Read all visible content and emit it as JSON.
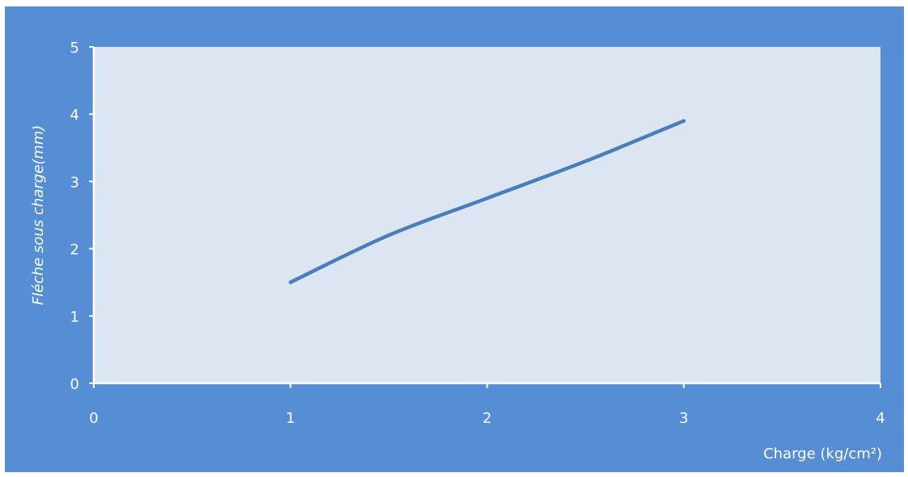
{
  "chart_data": {
    "type": "line",
    "xlabel": "Charge (kg/cm²)",
    "ylabel": "Fléche sous charge(mm)",
    "xlim": [
      0,
      4
    ],
    "ylim": [
      0,
      5
    ],
    "x_ticks": [
      "0",
      "1",
      "2",
      "3",
      "4"
    ],
    "y_ticks": [
      "0",
      "1",
      "2",
      "3",
      "4",
      "5"
    ],
    "grid": false,
    "legend": false,
    "series": [
      {
        "x": [
          1,
          1.5,
          2,
          2.5,
          3
        ],
        "values": [
          1.5,
          2.2,
          2.75,
          3.3,
          3.9
        ]
      }
    ],
    "colors": {
      "background": "#558ed5",
      "plot_area": "#dce6f2",
      "line": "#4a7ebb",
      "axes": "#ffffff"
    }
  }
}
